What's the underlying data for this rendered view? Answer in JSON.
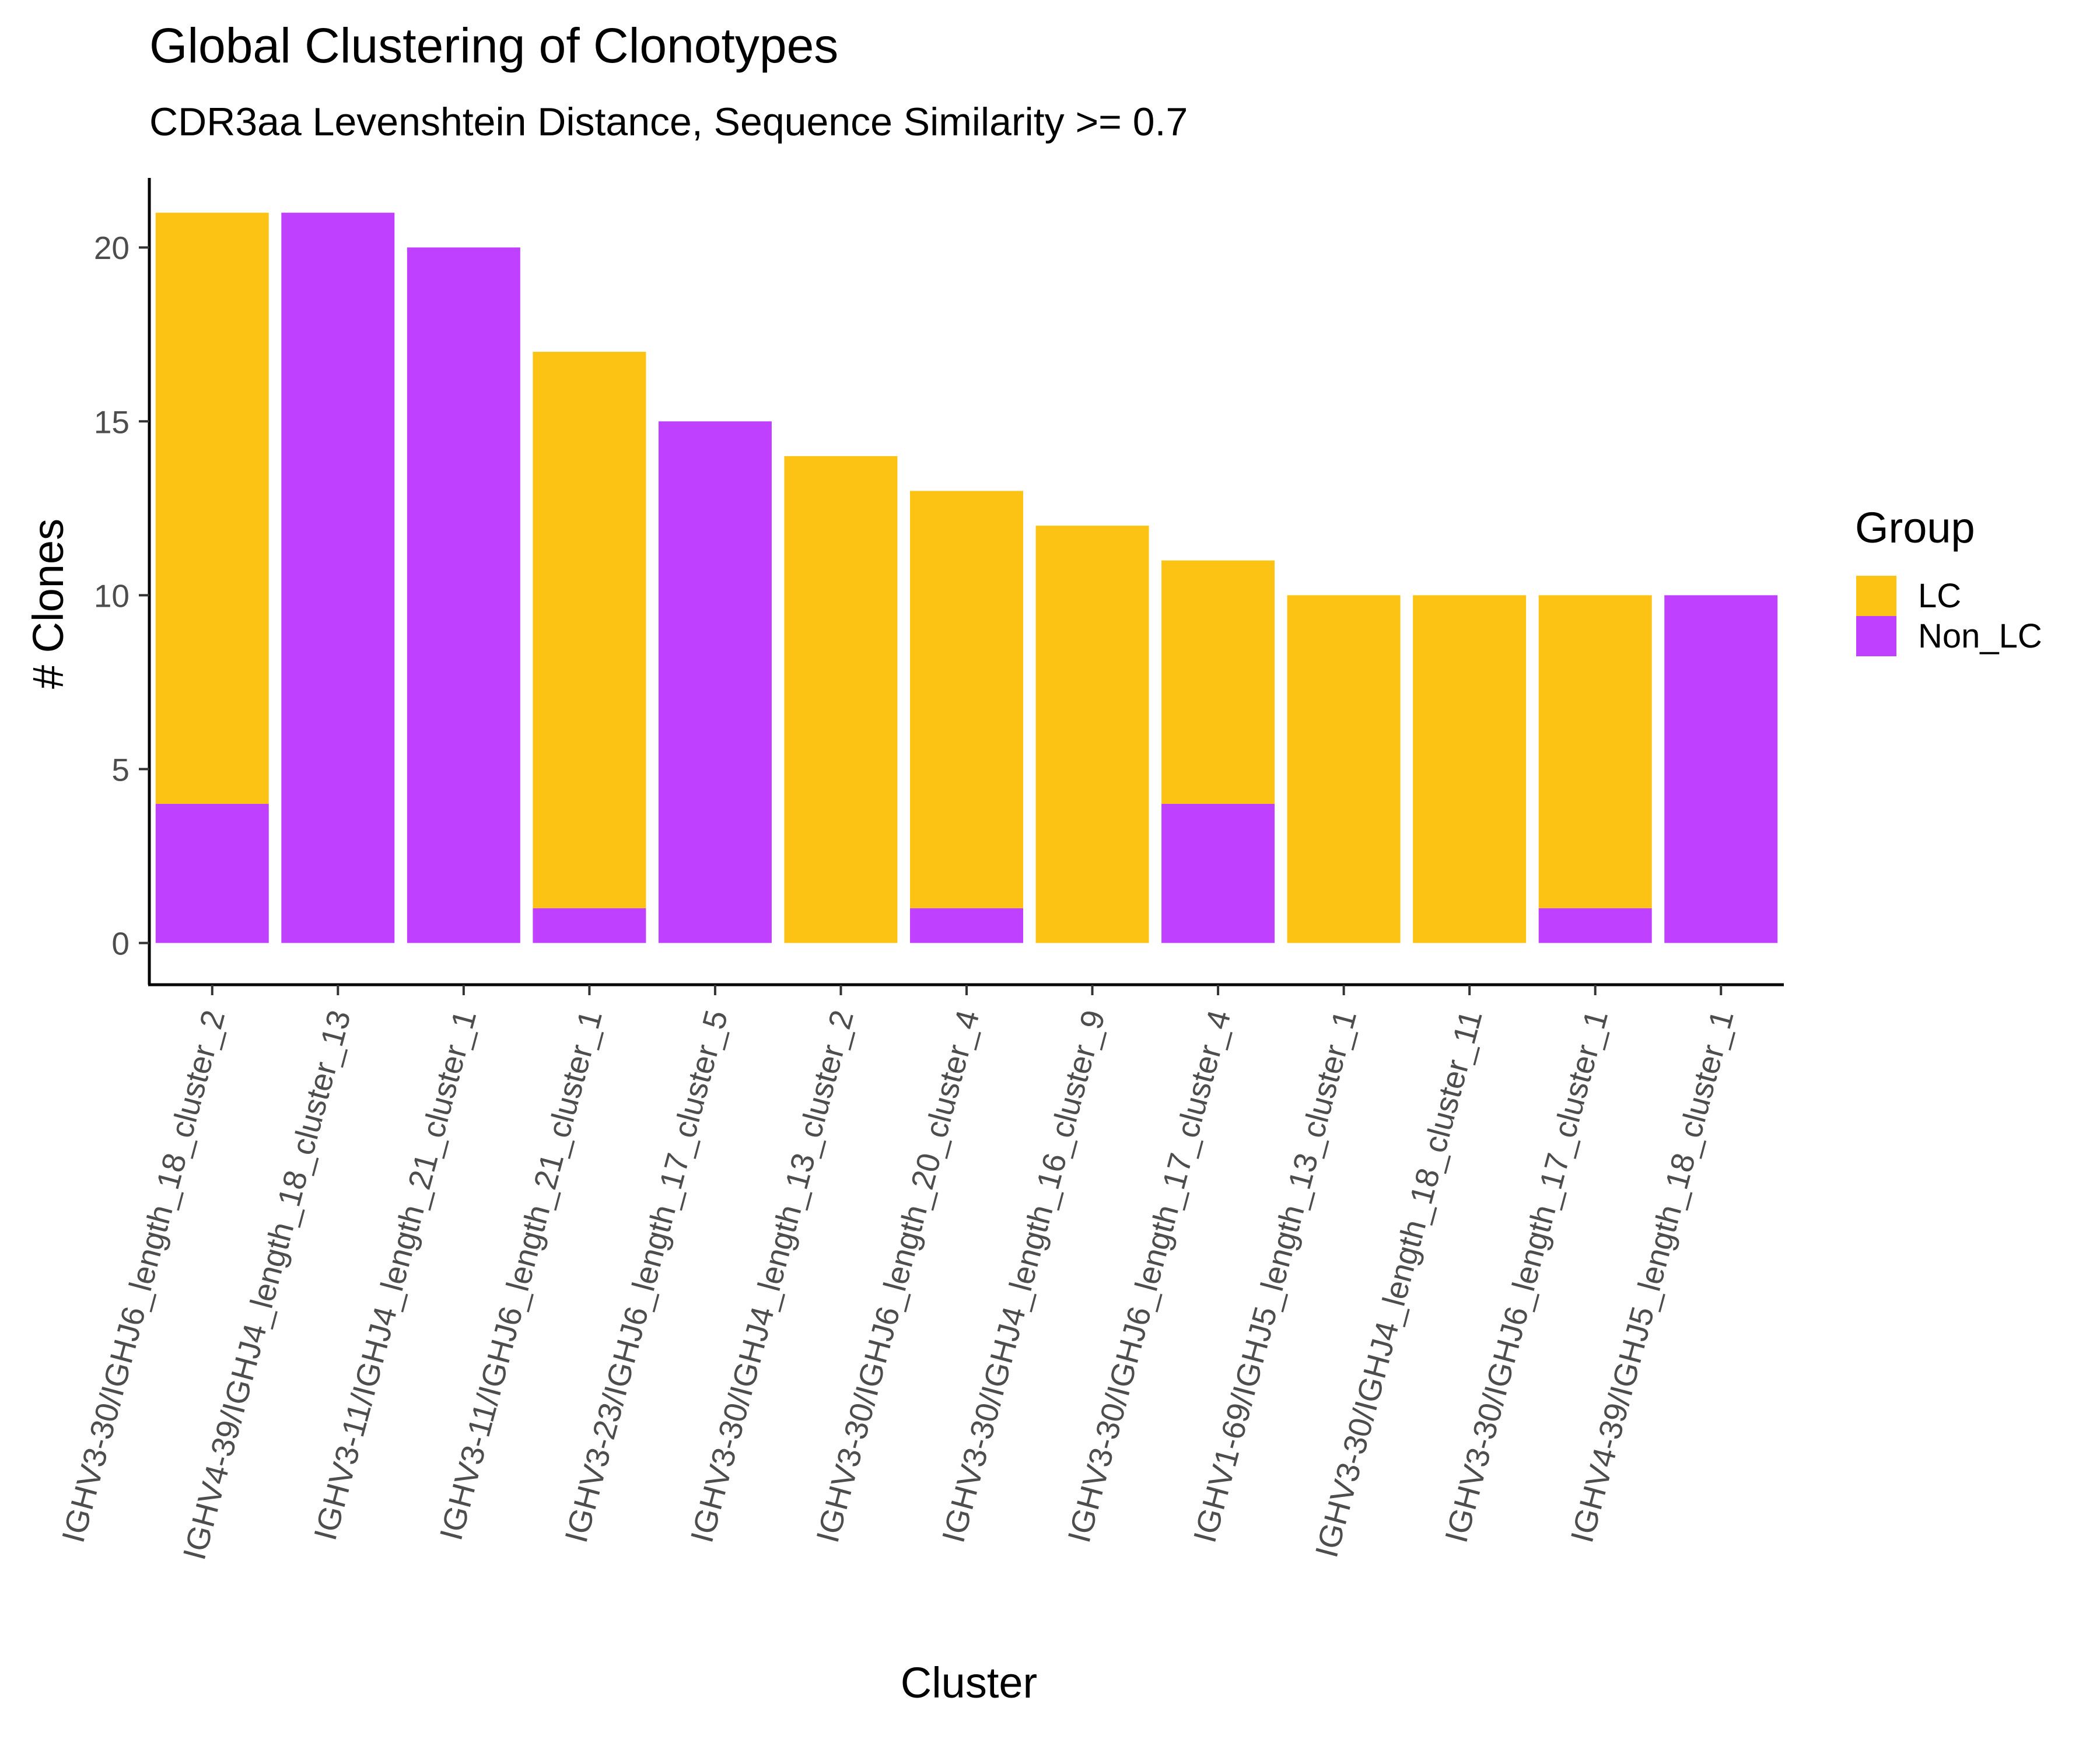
{
  "chart_data": {
    "type": "bar",
    "stacked": true,
    "title": "Global Clustering of Clonotypes",
    "subtitle": "CDR3aa Levenshtein Distance, Sequence Similarity >= 0.7",
    "xlabel": "Cluster",
    "ylabel": "# Clones",
    "ylim": [
      -1.2,
      22
    ],
    "yticks": [
      0,
      5,
      10,
      15,
      20
    ],
    "grid": false,
    "legend": {
      "title": "Group",
      "position": "right"
    },
    "categories": [
      "IGHV3-30/IGHJ6_length_18_cluster_2",
      "IGHV4-39/IGHJ4_length_18_cluster_13",
      "IGHV3-11/IGHJ4_length_21_cluster_1",
      "IGHV3-11/IGHJ6_length_21_cluster_1",
      "IGHV3-23/IGHJ6_length_17_cluster_5",
      "IGHV3-30/IGHJ4_length_13_cluster_2",
      "IGHV3-30/IGHJ6_length_20_cluster_4",
      "IGHV3-30/IGHJ4_length_16_cluster_9",
      "IGHV3-30/IGHJ6_length_17_cluster_4",
      "IGHV1-69/IGHJ5_length_13_cluster_1",
      "IGHV3-30/IGHJ4_length_18_cluster_11",
      "IGHV3-30/IGHJ6_length_17_cluster_1",
      "IGHV4-39/IGHJ5_length_18_cluster_1"
    ],
    "series": [
      {
        "name": "LC",
        "color": "#FDC314",
        "values": [
          17,
          0,
          0,
          16,
          0,
          14,
          12,
          12,
          7,
          10,
          10,
          9,
          0
        ]
      },
      {
        "name": "Non_LC",
        "color": "#C040FF",
        "values": [
          4,
          21,
          20,
          1,
          15,
          0,
          1,
          0,
          4,
          0,
          0,
          1,
          10
        ]
      }
    ]
  }
}
